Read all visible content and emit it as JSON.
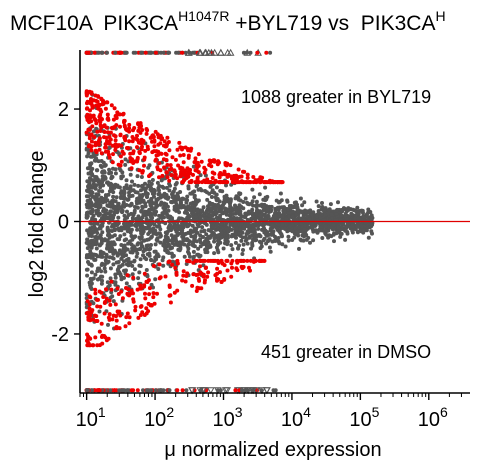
{
  "chart_data": {
    "type": "scatter",
    "title": {
      "prefix": "MCF10A  PIK3CA",
      "superscript": "H1047R",
      "suffix": " +BYL719 vs  PIK3CA",
      "trailing_superscript": "H"
    },
    "xlabel": "μ normalized expression",
    "ylabel": "log2 fold change",
    "x_scale": "log10",
    "xlim": [
      8,
      4000000
    ],
    "ylim": [
      -3.05,
      3.05
    ],
    "x_ticks": [
      {
        "value": 10,
        "base": "10",
        "exp": "1"
      },
      {
        "value": 100,
        "base": "10",
        "exp": "2"
      },
      {
        "value": 1000,
        "base": "10",
        "exp": "3"
      },
      {
        "value": 10000,
        "base": "10",
        "exp": "4"
      },
      {
        "value": 100000,
        "base": "10",
        "exp": "5"
      },
      {
        "value": 1000000,
        "base": "10",
        "exp": "6"
      }
    ],
    "y_ticks": [
      {
        "value": 2,
        "label": "2"
      },
      {
        "value": 0,
        "label": "0"
      },
      {
        "value": -2,
        "label": "-2"
      }
    ],
    "reference_line": {
      "y": 0,
      "color": "#e00000"
    },
    "annotations": [
      {
        "text": "1088 greater in BYL719",
        "x": 60000,
        "y": 2.35
      },
      {
        "text": "451 greater in DMSO",
        "x": 45000,
        "y": -2.4
      }
    ],
    "series": [
      {
        "role": "not significant",
        "color": "#555555",
        "x_range": [
          10,
          300000
        ],
        "spread_at_x10": 1.9,
        "spread_at_x1e5": 0.25
      },
      {
        "role": "significant up",
        "color": "#ee0000",
        "x_range": [
          10,
          8000
        ],
        "y_range": [
          0.7,
          2.8
        ]
      },
      {
        "role": "significant down",
        "color": "#ee0000",
        "x_range": [
          10,
          4000
        ],
        "y_range": [
          -2.2,
          -0.7
        ]
      }
    ],
    "capped_markers": {
      "top": {
        "y": 3.0,
        "marker": "triangle-up",
        "x_range": [
          10,
          5000
        ]
      },
      "bottom": {
        "y": -3.0,
        "marker": "triangle-down",
        "x_range": [
          10,
          6000
        ]
      }
    },
    "colors": {
      "non_significant": "#555555",
      "significant": "#ee0000",
      "reference": "#e00000"
    },
    "grid": false
  }
}
